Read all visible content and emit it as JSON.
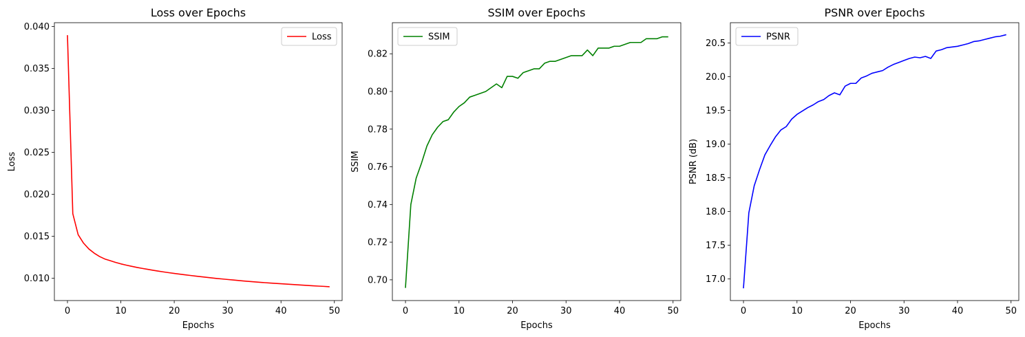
{
  "chart_data": [
    {
      "type": "line",
      "title": "Loss over Epochs",
      "xlabel": "Epochs",
      "ylabel": "Loss",
      "xlim": [
        -2.45,
        51.45
      ],
      "ylim": [
        0.00735,
        0.04045
      ],
      "xticks": [
        0,
        10,
        20,
        30,
        40,
        50
      ],
      "xtick_labels": [
        "0",
        "10",
        "20",
        "30",
        "40",
        "50"
      ],
      "yticks": [
        0.01,
        0.015,
        0.02,
        0.025,
        0.03,
        0.035,
        0.04
      ],
      "ytick_labels": [
        "0.010",
        "0.015",
        "0.020",
        "0.025",
        "0.030",
        "0.035",
        "0.040"
      ],
      "legend_position": "upper right",
      "grid": false,
      "series": [
        {
          "name": "Loss",
          "color": "#ff0000",
          "x": [
            0,
            1,
            2,
            3,
            4,
            5,
            6,
            7,
            8,
            9,
            10,
            11,
            12,
            13,
            14,
            15,
            16,
            17,
            18,
            19,
            20,
            21,
            22,
            23,
            24,
            25,
            26,
            27,
            28,
            29,
            30,
            31,
            32,
            33,
            34,
            35,
            36,
            37,
            38,
            39,
            40,
            41,
            42,
            43,
            44,
            45,
            46,
            47,
            48,
            49
          ],
          "values": [
            0.0389,
            0.0177,
            0.0152,
            0.0142,
            0.0135,
            0.013,
            0.0126,
            0.0123,
            0.0121,
            0.0119,
            0.01172,
            0.01157,
            0.01143,
            0.0113,
            0.01118,
            0.01107,
            0.01096,
            0.01086,
            0.01076,
            0.01067,
            0.01058,
            0.0105,
            0.01042,
            0.01034,
            0.01026,
            0.01019,
            0.01012,
            0.01005,
            0.00998,
            0.00992,
            0.00986,
            0.0098,
            0.00974,
            0.00968,
            0.00963,
            0.00958,
            0.00953,
            0.00948,
            0.00943,
            0.00939,
            0.00935,
            0.00931,
            0.00927,
            0.00923,
            0.00919,
            0.00915,
            0.00911,
            0.00907,
            0.00904,
            0.009
          ]
        }
      ]
    },
    {
      "type": "line",
      "title": "SSIM over Epochs",
      "xlabel": "Epochs",
      "ylabel": "SSIM",
      "xlim": [
        -2.45,
        51.45
      ],
      "ylim": [
        0.689,
        0.8365
      ],
      "xticks": [
        0,
        10,
        20,
        30,
        40,
        50
      ],
      "xtick_labels": [
        "0",
        "10",
        "20",
        "30",
        "40",
        "50"
      ],
      "yticks": [
        0.7,
        0.72,
        0.74,
        0.76,
        0.78,
        0.8,
        0.82
      ],
      "ytick_labels": [
        "0.70",
        "0.72",
        "0.74",
        "0.76",
        "0.78",
        "0.80",
        "0.82"
      ],
      "legend_position": "upper left",
      "grid": false,
      "series": [
        {
          "name": "SSIM",
          "color": "#008000",
          "x": [
            0,
            1,
            2,
            3,
            4,
            5,
            6,
            7,
            8,
            9,
            10,
            11,
            12,
            13,
            14,
            15,
            16,
            17,
            18,
            19,
            20,
            21,
            22,
            23,
            24,
            25,
            26,
            27,
            28,
            29,
            30,
            31,
            32,
            33,
            34,
            35,
            36,
            37,
            38,
            39,
            40,
            41,
            42,
            43,
            44,
            45,
            46,
            47,
            48,
            49
          ],
          "values": [
            0.696,
            0.74,
            0.754,
            0.762,
            0.771,
            0.777,
            0.781,
            0.784,
            0.785,
            0.789,
            0.792,
            0.794,
            0.797,
            0.798,
            0.799,
            0.8,
            0.802,
            0.804,
            0.802,
            0.808,
            0.808,
            0.807,
            0.81,
            0.811,
            0.812,
            0.812,
            0.815,
            0.816,
            0.816,
            0.817,
            0.818,
            0.819,
            0.819,
            0.819,
            0.822,
            0.819,
            0.823,
            0.823,
            0.823,
            0.824,
            0.824,
            0.825,
            0.826,
            0.826,
            0.826,
            0.828,
            0.828,
            0.828,
            0.829,
            0.829
          ]
        }
      ]
    },
    {
      "type": "line",
      "title": "PSNR over Epochs",
      "xlabel": "Epochs",
      "ylabel": "PSNR (dB)",
      "xlim": [
        -2.45,
        51.45
      ],
      "ylim": [
        16.68,
        20.8
      ],
      "xticks": [
        0,
        10,
        20,
        30,
        40,
        50
      ],
      "xtick_labels": [
        "0",
        "10",
        "20",
        "30",
        "40",
        "50"
      ],
      "yticks": [
        17.0,
        17.5,
        18.0,
        18.5,
        19.0,
        19.5,
        20.0,
        20.5
      ],
      "ytick_labels": [
        "17.0",
        "17.5",
        "18.0",
        "18.5",
        "19.0",
        "19.5",
        "20.0",
        "20.5"
      ],
      "legend_position": "upper left",
      "grid": false,
      "series": [
        {
          "name": "PSNR",
          "color": "#0000ff",
          "x": [
            0,
            1,
            2,
            3,
            4,
            5,
            6,
            7,
            8,
            9,
            10,
            11,
            12,
            13,
            14,
            15,
            16,
            17,
            18,
            19,
            20,
            21,
            22,
            23,
            24,
            25,
            26,
            27,
            28,
            29,
            30,
            31,
            32,
            33,
            34,
            35,
            36,
            37,
            38,
            39,
            40,
            41,
            42,
            43,
            44,
            45,
            46,
            47,
            48,
            49
          ],
          "values": [
            16.87,
            17.98,
            18.38,
            18.62,
            18.84,
            18.98,
            19.11,
            19.21,
            19.26,
            19.37,
            19.44,
            19.49,
            19.54,
            19.58,
            19.63,
            19.66,
            19.72,
            19.76,
            19.73,
            19.86,
            19.9,
            19.9,
            19.98,
            20.01,
            20.05,
            20.07,
            20.09,
            20.14,
            20.18,
            20.21,
            20.24,
            20.27,
            20.29,
            20.28,
            20.3,
            20.27,
            20.38,
            20.4,
            20.43,
            20.44,
            20.45,
            20.47,
            20.49,
            20.52,
            20.53,
            20.55,
            20.57,
            20.59,
            20.6,
            20.62
          ]
        }
      ]
    }
  ]
}
